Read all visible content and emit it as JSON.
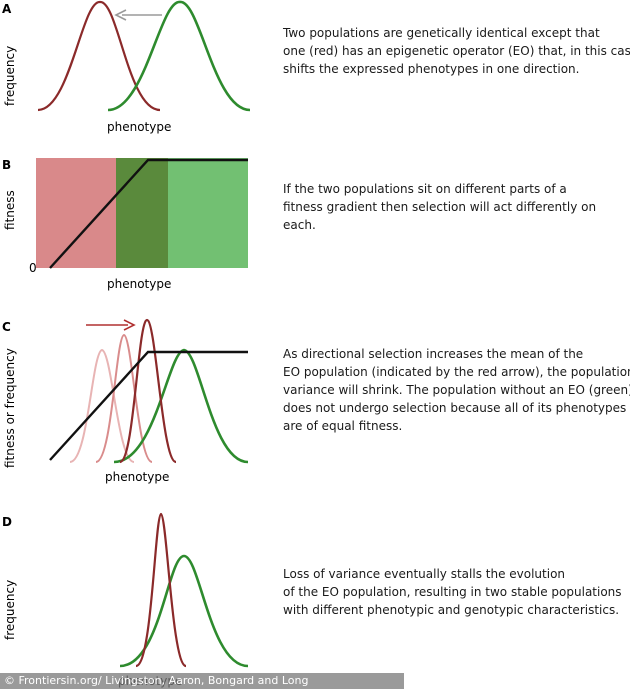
{
  "panels": {
    "A": {
      "letter": "A",
      "ylabel": "frequency",
      "xlabel": "phenotype",
      "text": [
        "Two populations are genetically identical except that",
        "one (red) has an epigenetic operator (EO) that, in this case,",
        "shifts the expressed phenotypes in one direction."
      ]
    },
    "B": {
      "letter": "B",
      "ylabel": "fitness",
      "xlabel": "phenotype",
      "origin": "0",
      "text": [
        "If the two populations sit on different parts of a",
        "fitness gradient then selection will act differently on",
        "each."
      ]
    },
    "C": {
      "letter": "C",
      "ylabel": "fitness or frequency",
      "xlabel": "phenotype",
      "text": [
        "As directional selection increases the mean of the",
        "EO population (indicated by the red arrow), the population’s",
        "variance will shrink.  The population without an EO (green)",
        "does not undergo selection because all of its phenotypes",
        "are of equal fitness."
      ]
    },
    "D": {
      "letter": "D",
      "ylabel": "frequency",
      "xlabel": "phenotype",
      "text": [
        "Loss of variance eventually stalls the evolution",
        "of the EO population, resulting in two stable populations",
        "with different phenotypic and genotypic characteristics."
      ]
    }
  },
  "credit": "© Frontiersin.org/ Livingston, Aaron, Bongard and Long",
  "colors": {
    "red_population": "#8b2a2a",
    "green_population": "#2e8b2e",
    "fitness_line": "#111111",
    "red_zone": "#d9898a",
    "green_zone": "#72c072",
    "overlap_zone": "#5a8a3c",
    "grey_arrow": "#9a9a9a",
    "faded_red_1": "#e8b4b4",
    "faded_red_2": "#d98c8c"
  }
}
